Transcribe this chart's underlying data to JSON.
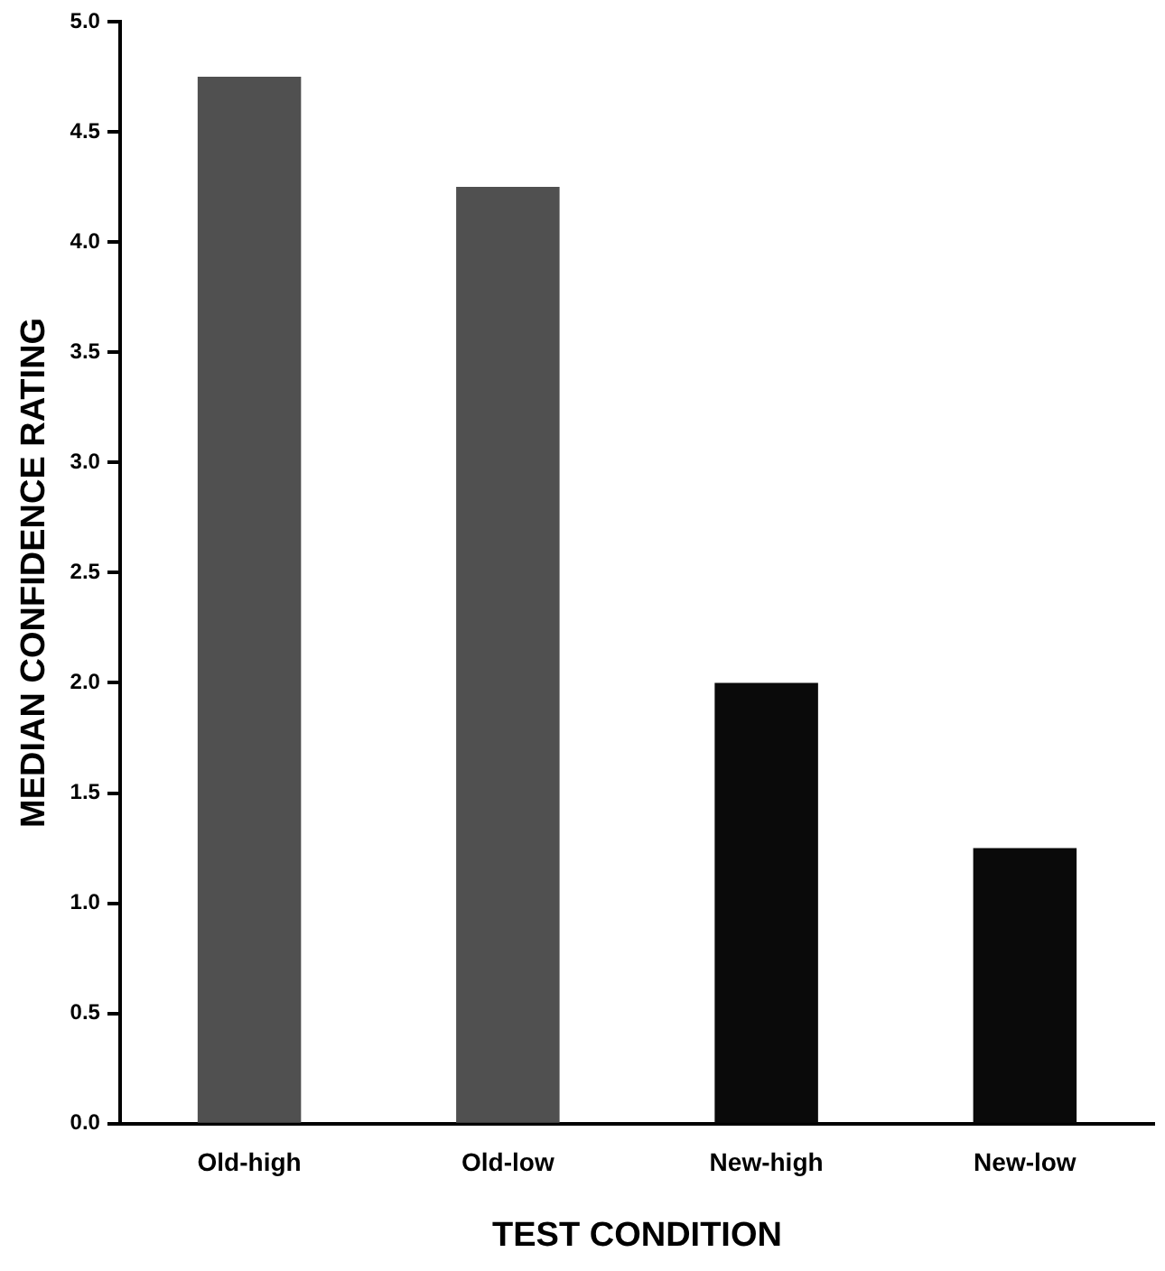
{
  "chart_data": {
    "type": "bar",
    "xlabel": "TEST CONDITION",
    "ylabel": "MEDIAN CONFIDENCE RATING",
    "categories": [
      "Old-high",
      "Old-low",
      "New-high",
      "New-low"
    ],
    "values": [
      4.75,
      4.25,
      2.0,
      1.25
    ],
    "colors": [
      "#505050",
      "#505050",
      "#0a0a0a",
      "#0a0a0a"
    ],
    "ylim": [
      0,
      5
    ],
    "yticks": [
      {
        "value": 0,
        "label": "0.0"
      },
      {
        "value": 0.5,
        "label": "0.5"
      },
      {
        "value": 1,
        "label": "1.0"
      },
      {
        "value": 1.5,
        "label": "1.5"
      },
      {
        "value": 2,
        "label": "2.0"
      },
      {
        "value": 2.5,
        "label": "2.5"
      },
      {
        "value": 3,
        "label": "3.0"
      },
      {
        "value": 3.5,
        "label": "3.5"
      },
      {
        "value": 4,
        "label": "4.0"
      },
      {
        "value": 4.5,
        "label": "4.5"
      },
      {
        "value": 5,
        "label": "5.0"
      }
    ],
    "grid": false,
    "legend": false
  }
}
